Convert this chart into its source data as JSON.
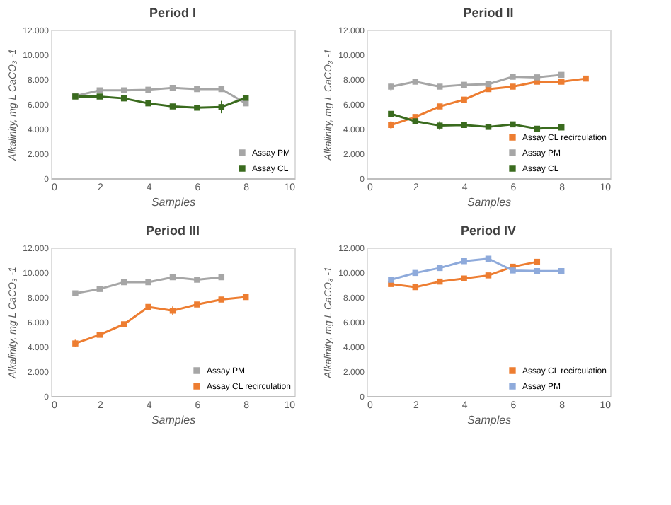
{
  "chart_data": [
    {
      "type": "line",
      "title": "Period I",
      "xlabel": "Samples",
      "ylabel": "Alkalinity, mg L CaCO₃ -1",
      "xlim": [
        0,
        10
      ],
      "xticks": [
        0,
        2,
        4,
        6,
        8,
        10
      ],
      "ylim": [
        0,
        12000
      ],
      "yticks": [
        {
          "value": 0,
          "label": "0"
        },
        {
          "value": 2000,
          "label": "2.000"
        },
        {
          "value": 4000,
          "label": "4.000"
        },
        {
          "value": 6000,
          "label": "6.000"
        },
        {
          "value": 8000,
          "label": "8.000"
        },
        {
          "value": 10000,
          "label": "10.000"
        },
        {
          "value": 12000,
          "label": "12.000"
        }
      ],
      "marker": "square",
      "legend": "bottom right",
      "grid": false,
      "series": [
        {
          "name": "Assay PM",
          "color": "#a6a6a6",
          "x": [
            1,
            2,
            3,
            4,
            5,
            6,
            7,
            8
          ],
          "values": [
            6650,
            7100,
            7100,
            7150,
            7300,
            7200,
            7200,
            6050
          ]
        },
        {
          "name": "Assay CL",
          "color": "#3a6b1e",
          "x": [
            1,
            2,
            3,
            4,
            5,
            6,
            7,
            8
          ],
          "values": [
            6600,
            6600,
            6450,
            6050,
            5800,
            5700,
            5750,
            6500
          ],
          "errors": [
            null,
            null,
            null,
            null,
            null,
            null,
            500,
            null
          ]
        }
      ]
    },
    {
      "type": "line",
      "title": "Period II",
      "xlabel": "Samples",
      "ylabel": "Alkalinity, mg L CaCO₃ -1",
      "xlim": [
        0,
        10
      ],
      "xticks": [
        0,
        2,
        4,
        6,
        8,
        10
      ],
      "ylim": [
        0,
        12000
      ],
      "yticks": [
        {
          "value": 0,
          "label": "0"
        },
        {
          "value": 2000,
          "label": "2.000"
        },
        {
          "value": 4000,
          "label": "4.000"
        },
        {
          "value": 6000,
          "label": "6.000"
        },
        {
          "value": 8000,
          "label": "8.000"
        },
        {
          "value": 10000,
          "label": "10.000"
        },
        {
          "value": 12000,
          "label": "12.000"
        }
      ],
      "marker": "square",
      "legend": "bottom right",
      "grid": false,
      "series": [
        {
          "name": "Assay CL recirculation",
          "color": "#ed7d31",
          "x": [
            1,
            2,
            3,
            4,
            5,
            6,
            7,
            8,
            9
          ],
          "values": [
            4300,
            4950,
            5800,
            6350,
            7200,
            7400,
            7800,
            7800,
            8050
          ],
          "errors": [
            300,
            null,
            null,
            null,
            null,
            null,
            null,
            null,
            null
          ]
        },
        {
          "name": "Assay PM",
          "color": "#a6a6a6",
          "x": [
            1,
            2,
            3,
            4,
            5,
            6,
            7,
            8
          ],
          "values": [
            7400,
            7800,
            7400,
            7550,
            7600,
            8200,
            8150,
            8350
          ],
          "errors": [
            300,
            null,
            null,
            null,
            null,
            null,
            null,
            null
          ]
        },
        {
          "name": "Assay CL",
          "color": "#3a6b1e",
          "x": [
            1,
            2,
            3,
            4,
            5,
            6,
            7,
            8
          ],
          "values": [
            5200,
            4600,
            4250,
            4300,
            4150,
            4350,
            4000,
            4100
          ],
          "errors": [
            null,
            null,
            350,
            null,
            null,
            null,
            null,
            null
          ]
        }
      ]
    },
    {
      "type": "line",
      "title": "Period III",
      "xlabel": "Samples",
      "ylabel": "Alkalinity, mg L CaCO₃ -1",
      "xlim": [
        0,
        10
      ],
      "xticks": [
        0,
        2,
        4,
        6,
        8,
        10
      ],
      "ylim": [
        0,
        12000
      ],
      "yticks": [
        {
          "value": 0,
          "label": "0"
        },
        {
          "value": 2000,
          "label": "2.000"
        },
        {
          "value": 4000,
          "label": "4.000"
        },
        {
          "value": 6000,
          "label": "6.000"
        },
        {
          "value": 8000,
          "label": "8.000"
        },
        {
          "value": 10000,
          "label": "10.000"
        },
        {
          "value": 12000,
          "label": "12.000"
        }
      ],
      "marker": "square",
      "legend": "bottom right",
      "grid": false,
      "series": [
        {
          "name": "Assay PM",
          "color": "#a6a6a6",
          "x": [
            1,
            2,
            3,
            4,
            5,
            6,
            7
          ],
          "values": [
            8300,
            8650,
            9200,
            9200,
            9600,
            9400,
            9600
          ]
        },
        {
          "name": "Assay CL recirculation",
          "color": "#ed7d31",
          "x": [
            1,
            2,
            3,
            4,
            5,
            6,
            7,
            8
          ],
          "values": [
            4250,
            4950,
            5800,
            7200,
            6900,
            7400,
            7800,
            8000
          ],
          "errors": [
            300,
            null,
            null,
            null,
            350,
            null,
            null,
            null
          ]
        }
      ]
    },
    {
      "type": "line",
      "title": "Period IV",
      "xlabel": "Samples",
      "ylabel": "Alkalinity, mg L CaCO₃ -1",
      "xlim": [
        0,
        10
      ],
      "xticks": [
        0,
        2,
        4,
        6,
        8,
        10
      ],
      "ylim": [
        0,
        12000
      ],
      "yticks": [
        {
          "value": 0,
          "label": "0"
        },
        {
          "value": 2000,
          "label": "2.000"
        },
        {
          "value": 4000,
          "label": "4.000"
        },
        {
          "value": 6000,
          "label": "6.000"
        },
        {
          "value": 8000,
          "label": "8.000"
        },
        {
          "value": 10000,
          "label": "10.000"
        },
        {
          "value": 12000,
          "label": "12.000"
        }
      ],
      "marker": "square",
      "legend": "bottom right",
      "grid": false,
      "series": [
        {
          "name": "Assay CL recirculation",
          "color": "#ed7d31",
          "x": [
            1,
            2,
            3,
            4,
            5,
            6,
            7
          ],
          "values": [
            9050,
            8800,
            9250,
            9500,
            9750,
            10450,
            10850
          ]
        },
        {
          "name": "Assay PM",
          "color": "#8eaadb",
          "x": [
            1,
            2,
            3,
            4,
            5,
            6,
            7,
            8
          ],
          "values": [
            9400,
            9950,
            10350,
            10900,
            11100,
            10150,
            10100,
            10100
          ]
        }
      ]
    }
  ]
}
